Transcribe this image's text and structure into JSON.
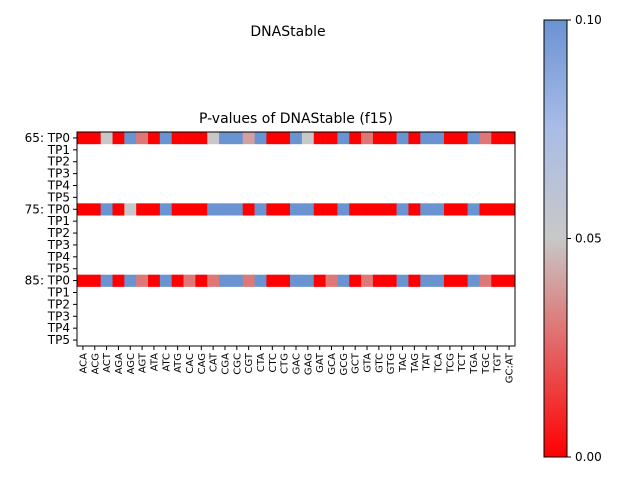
{
  "colors": {
    "low": "#ff0000",
    "mid": "#c8c8c8",
    "high": "#6a93d2",
    "empty": "#ffffff"
  },
  "chart_data": {
    "type": "heatmap",
    "suptitle": "DNAStable",
    "title": "P-values of DNAStable (f15)",
    "x_labels": [
      "ACA",
      "ACG",
      "ACT",
      "AGA",
      "AGC",
      "AGT",
      "ATA",
      "ATC",
      "ATG",
      "CAC",
      "CAG",
      "CAT",
      "CGA",
      "CGC",
      "CGT",
      "CTA",
      "CTC",
      "CTG",
      "GAC",
      "GAG",
      "GAT",
      "GCA",
      "GCG",
      "GCT",
      "GTA",
      "GTC",
      "GTG",
      "TAC",
      "TAG",
      "TAT",
      "TCA",
      "TCG",
      "TCT",
      "TGA",
      "TGC",
      "TGT",
      "GC:AT"
    ],
    "y_labels": [
      "65: TP0",
      "TP1",
      "TP2",
      "TP3",
      "TP4",
      "TP5",
      "75: TP0",
      "TP1",
      "TP2",
      "TP3",
      "TP4",
      "TP5",
      "85: TP0",
      "TP1",
      "TP2",
      "TP3",
      "TP4",
      "TP5"
    ],
    "colorbar": {
      "min": 0.0,
      "max": 0.1,
      "ticks": [
        "0.00",
        "0.05",
        "0.10"
      ]
    },
    "rows": [
      [
        0.0,
        0.0,
        0.05,
        0.0,
        0.1,
        0.03,
        0.0,
        0.1,
        0.0,
        0.0,
        0.0,
        0.05,
        0.1,
        0.1,
        0.04,
        0.1,
        0.0,
        0.0,
        0.1,
        0.05,
        0.0,
        0.0,
        0.1,
        0.0,
        0.03,
        0.0,
        0.0,
        0.1,
        0.0,
        0.1,
        0.1,
        0.0,
        0.0,
        0.1,
        0.03,
        0.0,
        0.0
      ],
      null,
      null,
      null,
      null,
      null,
      [
        0.0,
        0.0,
        0.1,
        0.0,
        0.05,
        0.0,
        0.0,
        0.1,
        0.0,
        0.0,
        0.0,
        0.1,
        0.1,
        0.1,
        0.0,
        0.1,
        0.0,
        0.0,
        0.1,
        0.1,
        0.0,
        0.0,
        0.1,
        0.0,
        0.0,
        0.0,
        0.0,
        0.1,
        0.0,
        0.1,
        0.1,
        0.0,
        0.0,
        0.1,
        0.0,
        0.0,
        0.0
      ],
      null,
      null,
      null,
      null,
      null,
      [
        0.0,
        0.0,
        0.1,
        0.0,
        0.1,
        0.03,
        0.0,
        0.1,
        0.0,
        0.03,
        0.0,
        0.03,
        0.1,
        0.1,
        0.03,
        0.1,
        0.0,
        0.0,
        0.1,
        0.1,
        0.0,
        0.03,
        0.1,
        0.0,
        0.03,
        0.0,
        0.0,
        0.1,
        0.0,
        0.1,
        0.1,
        0.0,
        0.0,
        0.1,
        0.03,
        0.0,
        0.0
      ],
      null,
      null,
      null,
      null,
      null
    ]
  }
}
